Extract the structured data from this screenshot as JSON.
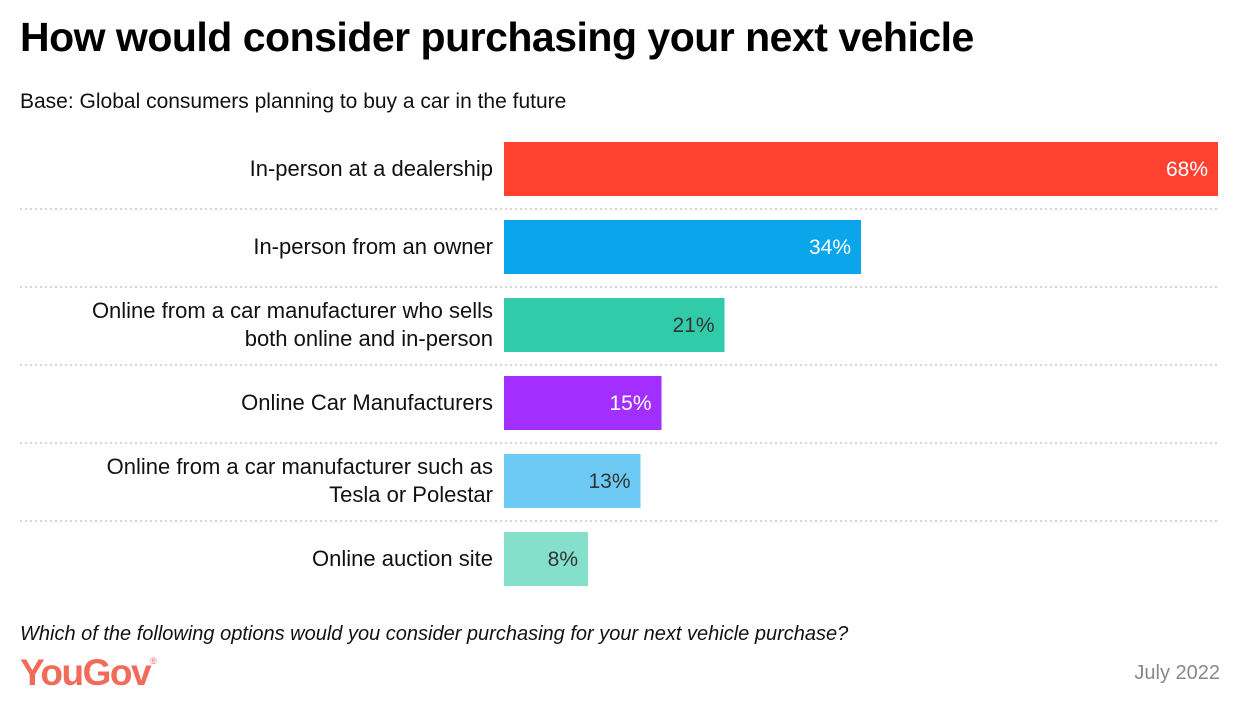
{
  "title": "How would consider purchasing your next vehicle",
  "subtitle": "Base: Global consumers planning to buy a car in the future",
  "question": "Which of the following options would you consider purchasing for your next vehicle purchase?",
  "logo": "YouGov",
  "date": "July 2022",
  "chart_data": {
    "type": "bar",
    "orientation": "horizontal",
    "categories": [
      [
        "In-person at a dealership"
      ],
      [
        "In-person from an owner"
      ],
      [
        "Online from a car manufacturer who sells",
        "both online and in-person"
      ],
      [
        "Online Car Manufacturers"
      ],
      [
        "Online from a car manufacturer such as",
        "Tesla or Polestar"
      ],
      [
        "Online auction site"
      ]
    ],
    "values": [
      68,
      34,
      21,
      15,
      13,
      8
    ],
    "data_labels": [
      "68%",
      "34%",
      "21%",
      "15%",
      "13%",
      "8%"
    ],
    "colors": [
      "#ff4130",
      "#0aa5eb",
      "#31cbaa",
      "#a22eff",
      "#6ccaf5",
      "#84e0cb"
    ],
    "label_colors": [
      "#ffffff",
      "#ffffff",
      "#333333",
      "#ffffff",
      "#333333",
      "#333333"
    ],
    "xlim": [
      0,
      68
    ],
    "grid": false
  }
}
